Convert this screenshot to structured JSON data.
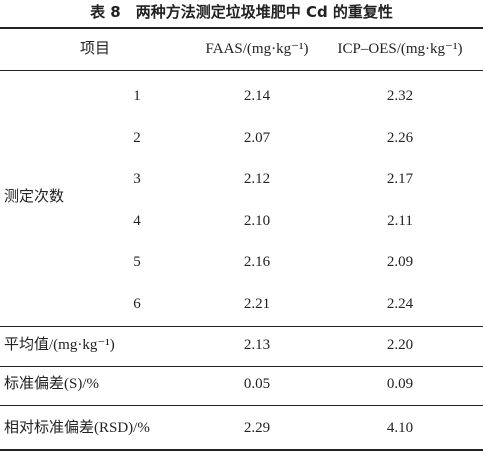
{
  "title": "表 8　两种方法测定垃圾堆肥中 Cd 的重复性",
  "table": {
    "header": [
      "项目",
      "FAAS/(mg·kg⁻¹)",
      "ICP–OES/(mg·kg⁻¹)"
    ],
    "group": {
      "label": "测定次数",
      "rows": [
        [
          "1",
          "2.14",
          "2.32"
        ],
        [
          "2",
          "2.07",
          "2.26"
        ],
        [
          "3",
          "2.12",
          "2.17"
        ],
        [
          "4",
          "2.10",
          "2.11"
        ],
        [
          "5",
          "2.16",
          "2.09"
        ],
        [
          "6",
          "2.21",
          "2.24"
        ]
      ]
    },
    "rows": [
      [
        "平均值/(mg·kg⁻¹)",
        "2.13",
        "2.20"
      ],
      [
        "标准偏差(S)/%",
        "0.05",
        "0.09"
      ],
      [
        "相对标准偏差(RSD)/%",
        "2.29",
        "4.10"
      ]
    ]
  }
}
